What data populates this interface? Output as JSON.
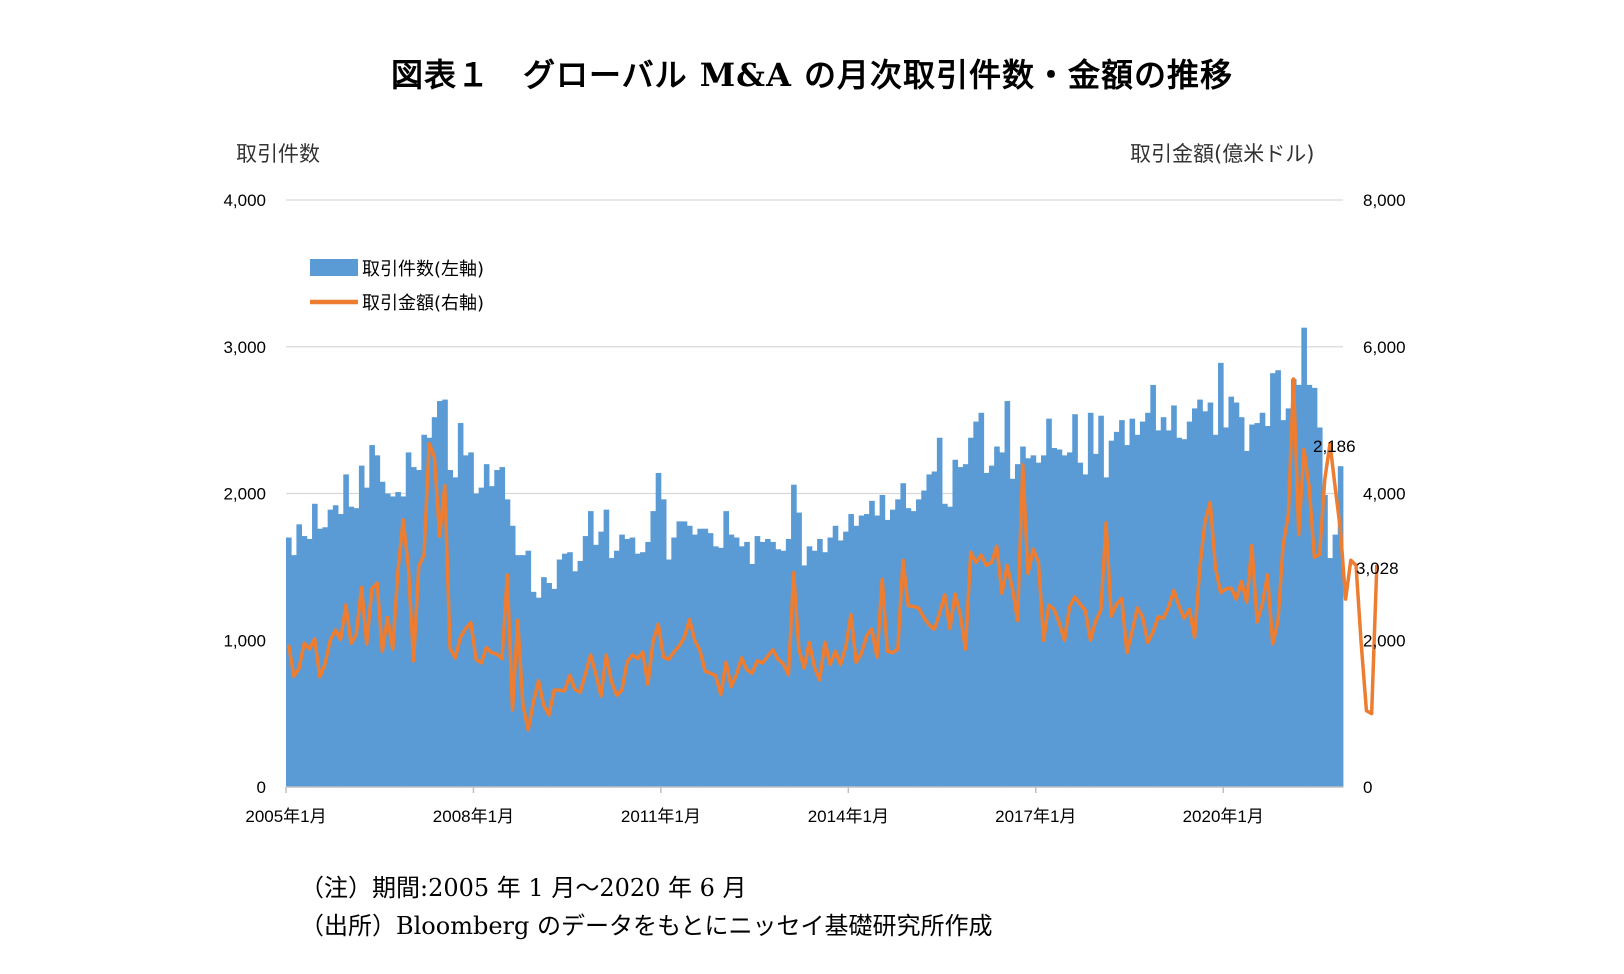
{
  "title": "図表１　グローバル M&A の月次取引件数・金額の推移",
  "notes": {
    "period": "（注）期間:2005 年 1 月～2020 年 6 月",
    "source": "（出所）Bloomberg のデータをもとにニッセイ基礎研究所作成"
  },
  "colors": {
    "bars": "#5b9bd5",
    "line": "#ed7d31",
    "grid": "#d9d9d9"
  },
  "chart_data": {
    "type": "bar",
    "title": "図表１　グローバル M&A の月次取引件数・金額の推移",
    "ylabel_left": "取引件数",
    "ylabel_right": "取引金額(億米ドル)",
    "ylim_left": [
      0,
      4000
    ],
    "ylim_right": [
      0,
      8000
    ],
    "yticks_left": [
      "0",
      "1,000",
      "2,000",
      "3,000",
      "4,000"
    ],
    "yticks_right": [
      "0",
      "2,000",
      "4,000",
      "6,000",
      "8,000"
    ],
    "xticks": [
      "2005年1月",
      "2008年1月",
      "2011年1月",
      "2014年1月",
      "2017年1月",
      "2020年1月"
    ],
    "grid": true,
    "legend_position": "top-left",
    "x_start": "2005-01",
    "x_end": "2020-06",
    "annotations": [
      {
        "text": "2,186",
        "series": "取引件数(左軸)",
        "x": "2020-06"
      },
      {
        "text": "3,028",
        "series": "取引金額(右軸)",
        "x": "2020-06"
      }
    ],
    "series": [
      {
        "name": "取引件数(左軸)",
        "type": "bar",
        "axis": "left",
        "values": [
          1700,
          1580,
          1790,
          1710,
          1690,
          1930,
          1760,
          1770,
          1890,
          1920,
          1860,
          2130,
          1910,
          1900,
          2190,
          2040,
          2330,
          2260,
          2080,
          2000,
          1980,
          2010,
          1980,
          2280,
          2180,
          2160,
          2400,
          2380,
          2520,
          2630,
          2640,
          2160,
          2110,
          2480,
          2260,
          2280,
          2000,
          2040,
          2200,
          2050,
          2160,
          2180,
          1960,
          1780,
          1580,
          1580,
          1610,
          1330,
          1290,
          1430,
          1390,
          1350,
          1550,
          1590,
          1600,
          1470,
          1540,
          1710,
          1880,
          1650,
          1740,
          1890,
          1560,
          1610,
          1720,
          1690,
          1700,
          1590,
          1600,
          1670,
          1880,
          2140,
          1960,
          1550,
          1700,
          1810,
          1810,
          1780,
          1720,
          1760,
          1760,
          1730,
          1640,
          1630,
          1880,
          1720,
          1700,
          1640,
          1670,
          1520,
          1710,
          1670,
          1690,
          1670,
          1620,
          1610,
          1690,
          2060,
          1870,
          1510,
          1640,
          1610,
          1690,
          1600,
          1700,
          1780,
          1680,
          1740,
          1860,
          1780,
          1850,
          1860,
          1950,
          1850,
          1990,
          1820,
          1890,
          1960,
          2070,
          1900,
          1880,
          1960,
          2020,
          2130,
          2150,
          2380,
          1930,
          1910,
          2230,
          2180,
          2200,
          2380,
          2490,
          2550,
          2140,
          2190,
          2320,
          2280,
          2630,
          2100,
          2200,
          2320,
          2240,
          2260,
          2210,
          2260,
          2510,
          2310,
          2300,
          2260,
          2280,
          2540,
          2210,
          2130,
          2550,
          2270,
          2530,
          2110,
          2360,
          2420,
          2500,
          2330,
          2510,
          2400,
          2490,
          2550,
          2740,
          2430,
          2520,
          2430,
          2600,
          2380,
          2370,
          2490,
          2580,
          2640,
          2560,
          2620,
          2400,
          2890,
          2450,
          2660,
          2620,
          2520,
          2290,
          2470,
          2480,
          2550,
          2460,
          2820,
          2840,
          2500,
          2580,
          2780,
          2740,
          3130,
          2740,
          2720,
          2450,
          1990,
          1560,
          1720,
          2186
        ]
      },
      {
        "name": "取引金額(右軸)",
        "type": "line",
        "axis": "right",
        "values": [
          1940,
          1510,
          1620,
          1960,
          1880,
          2020,
          1500,
          1680,
          2000,
          2140,
          2010,
          2480,
          1960,
          2080,
          2720,
          1950,
          2700,
          2780,
          1850,
          2310,
          1880,
          2950,
          3640,
          3000,
          1720,
          3010,
          3160,
          4680,
          4500,
          3420,
          4110,
          1890,
          1760,
          2040,
          2160,
          2240,
          1740,
          1690,
          1900,
          1830,
          1810,
          1750,
          2890,
          1050,
          2270,
          1120,
          780,
          1150,
          1450,
          1110,
          980,
          1320,
          1320,
          1310,
          1520,
          1330,
          1290,
          1540,
          1800,
          1540,
          1240,
          1800,
          1440,
          1250,
          1320,
          1700,
          1800,
          1750,
          1840,
          1400,
          1990,
          2220,
          1770,
          1740,
          1840,
          1920,
          2040,
          2280,
          2000,
          1860,
          1580,
          1550,
          1520,
          1260,
          1700,
          1370,
          1530,
          1760,
          1600,
          1550,
          1720,
          1690,
          1780,
          1870,
          1740,
          1680,
          1530,
          2920,
          1880,
          1620,
          1970,
          1630,
          1460,
          1970,
          1670,
          1850,
          1670,
          1910,
          2350,
          1700,
          1820,
          2060,
          2150,
          1770,
          2830,
          1850,
          1830,
          1880,
          3090,
          2470,
          2460,
          2440,
          2310,
          2210,
          2150,
          2360,
          2620,
          2160,
          2630,
          2350,
          1880,
          3200,
          3060,
          3160,
          3020,
          3060,
          3280,
          2640,
          3020,
          2710,
          2270,
          4390,
          2910,
          3240,
          3070,
          2000,
          2480,
          2420,
          2240,
          2000,
          2460,
          2590,
          2490,
          2410,
          2000,
          2260,
          2410,
          3600,
          2330,
          2490,
          2570,
          1830,
          2120,
          2440,
          2320,
          1970,
          2110,
          2320,
          2300,
          2450,
          2680,
          2470,
          2300,
          2420,
          2040,
          2980,
          3620,
          3880,
          2990,
          2650,
          2700,
          2710,
          2560,
          2800,
          2520,
          3290,
          2250,
          2490,
          2890,
          1950,
          2250,
          3300,
          3710,
          5560,
          3440,
          4600,
          4090,
          3130,
          3170,
          4190,
          4680,
          4080,
          3510,
          2560,
          3090,
          3020,
          1950,
          1040,
          1000,
          3028
        ]
      }
    ]
  }
}
